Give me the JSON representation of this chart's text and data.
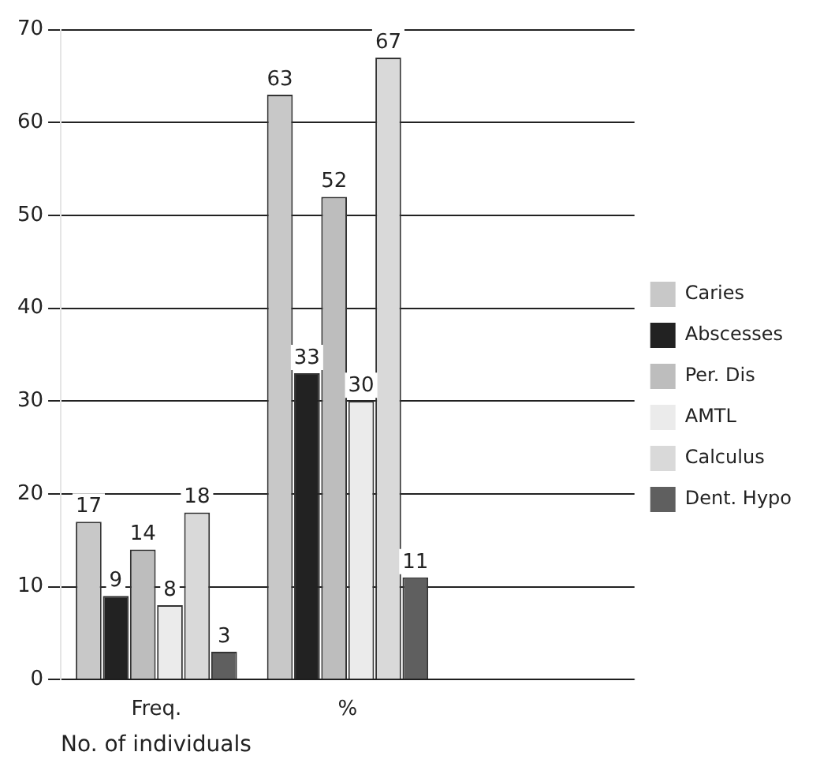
{
  "chart_data": {
    "type": "bar",
    "xlabel": "No. of individuals",
    "categories": [
      "Freq.",
      "%",
      null
    ],
    "series": [
      {
        "name": "Caries",
        "color": "#c8c8c8",
        "values": [
          17,
          63,
          null
        ]
      },
      {
        "name": "Abscesses",
        "color": "#222222",
        "values": [
          9,
          33,
          null
        ]
      },
      {
        "name": "Per. Dis",
        "color": "#bdbdbd",
        "values": [
          14,
          52,
          null
        ]
      },
      {
        "name": "AMTL",
        "color": "#ebebeb",
        "values": [
          8,
          30,
          null
        ]
      },
      {
        "name": "Calculus",
        "color": "#d9d9d9",
        "values": [
          18,
          67,
          null
        ]
      },
      {
        "name": "Dent. Hypo",
        "color": "#5f5f5f",
        "values": [
          3,
          11,
          null
        ]
      }
    ],
    "ylim": [
      0,
      70
    ],
    "yticks": [
      0,
      10,
      20,
      30,
      40,
      50,
      60,
      70
    ],
    "grid": "y",
    "legend": "right",
    "data_labels": true
  }
}
